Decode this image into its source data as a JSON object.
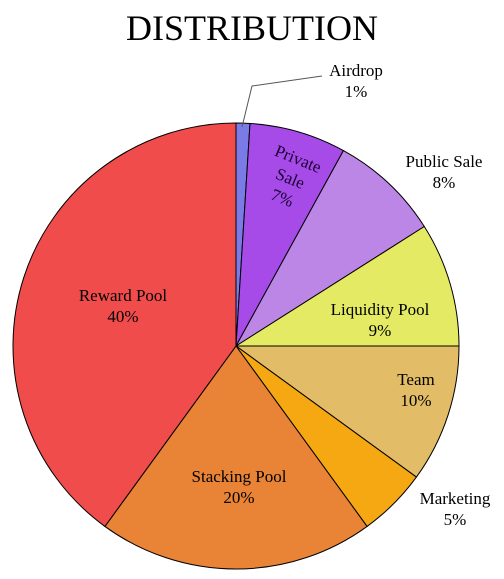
{
  "chart_data": {
    "type": "pie",
    "title": "DISTRIBUTION",
    "start_angle_deg": -90,
    "direction": "clockwise",
    "slices": [
      {
        "label": "Airdrop",
        "value": 1,
        "value_label": "1%",
        "color": "#7b7be8"
      },
      {
        "label": "Private Sale",
        "value": 7,
        "value_label": "7%",
        "color": "#a64ae8"
      },
      {
        "label": "Public Sale",
        "value": 8,
        "value_label": "8%",
        "color": "#bb86e6"
      },
      {
        "label": "Liquidity Pool",
        "value": 9,
        "value_label": "9%",
        "color": "#e4ea64"
      },
      {
        "label": "Team",
        "value": 10,
        "value_label": "10%",
        "color": "#e2bc66"
      },
      {
        "label": "Marketing",
        "value": 5,
        "value_label": "5%",
        "color": "#f5a812"
      },
      {
        "label": "Stacking Pool",
        "value": 20,
        "value_label": "20%",
        "color": "#e98336"
      },
      {
        "label": "Reward Pool",
        "value": 40,
        "value_label": "40%",
        "color": "#f04c4c"
      }
    ]
  }
}
